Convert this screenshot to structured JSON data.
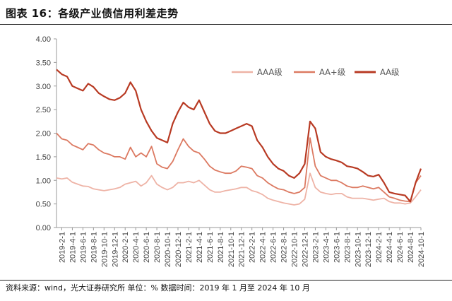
{
  "header": {
    "title": "图表 16：各级产业债信用利差走势"
  },
  "footer": {
    "source": "资料来源：wind，光大证券研究所   单位：%   数据时间：2019 年 1 月至 2024 年 10 月"
  },
  "colors": {
    "aaa": "#eeb3a6",
    "aa_plus": "#dc7a62",
    "aa": "#b83a23",
    "axis": "#999999",
    "title_rule": "#222222"
  },
  "chart_data": {
    "type": "line",
    "title": "图表 16：各级产业债信用利差走势",
    "xlabel": "",
    "ylabel": "",
    "ylim": [
      0,
      4
    ],
    "y_ticks": [
      "0.00",
      "0.50",
      "1.00",
      "1.50",
      "2.00",
      "2.50",
      "3.00",
      "3.50",
      "4.00"
    ],
    "x_tick_labels": [
      "2019-2-1",
      "2019-4-1",
      "2019-6-1",
      "2019-8-1",
      "2019-10-1",
      "2019-12-1",
      "2020-2-1",
      "2020-4-1",
      "2020-6-1",
      "2020-8-1",
      "2020-10-1",
      "2020-12-1",
      "2021-2-1",
      "2021-4-1",
      "2021-6-1",
      "2021-8-1",
      "2021-10-1",
      "2021-12-1",
      "2022-2-1",
      "2022-4-1",
      "2022-6-1",
      "2022-8-1",
      "2022-10-1",
      "2022-12-1",
      "2023-2-1",
      "2023-4-1",
      "2023-6-1",
      "2023-8-1",
      "2023-10-1",
      "2023-12-1",
      "2024-2-1",
      "2024-4-1",
      "2024-6-1",
      "2024-8-1",
      "2024-10-1"
    ],
    "x": [
      "2019-1",
      "2019-2",
      "2019-3",
      "2019-4",
      "2019-5",
      "2019-6",
      "2019-7",
      "2019-8",
      "2019-9",
      "2019-10",
      "2019-11",
      "2019-12",
      "2020-1",
      "2020-2",
      "2020-3",
      "2020-4",
      "2020-5",
      "2020-6",
      "2020-7",
      "2020-8",
      "2020-9",
      "2020-10",
      "2020-11",
      "2020-12",
      "2021-1",
      "2021-2",
      "2021-3",
      "2021-4",
      "2021-5",
      "2021-6",
      "2021-7",
      "2021-8",
      "2021-9",
      "2021-10",
      "2021-11",
      "2021-12",
      "2022-1",
      "2022-2",
      "2022-3",
      "2022-4",
      "2022-5",
      "2022-6",
      "2022-7",
      "2022-8",
      "2022-9",
      "2022-10",
      "2022-11",
      "2022-12",
      "2023-1",
      "2023-2",
      "2023-3",
      "2023-4",
      "2023-5",
      "2023-6",
      "2023-7",
      "2023-8",
      "2023-9",
      "2023-10",
      "2023-11",
      "2023-12",
      "2024-1",
      "2024-2",
      "2024-3",
      "2024-4",
      "2024-5",
      "2024-6",
      "2024-7",
      "2024-8",
      "2024-9",
      "2024-10"
    ],
    "series": [
      {
        "name": "AAA级",
        "values": [
          1.05,
          1.03,
          1.05,
          0.96,
          0.92,
          0.88,
          0.87,
          0.82,
          0.8,
          0.78,
          0.8,
          0.82,
          0.85,
          0.92,
          0.95,
          0.98,
          0.88,
          0.95,
          1.1,
          0.92,
          0.85,
          0.8,
          0.85,
          0.95,
          0.95,
          0.98,
          0.95,
          1.0,
          0.9,
          0.8,
          0.75,
          0.75,
          0.78,
          0.8,
          0.82,
          0.85,
          0.85,
          0.78,
          0.75,
          0.7,
          0.62,
          0.58,
          0.55,
          0.52,
          0.5,
          0.48,
          0.5,
          0.6,
          1.15,
          0.85,
          0.75,
          0.72,
          0.7,
          0.72,
          0.72,
          0.65,
          0.62,
          0.62,
          0.62,
          0.6,
          0.58,
          0.6,
          0.62,
          0.55,
          0.52,
          0.52,
          0.5,
          0.52,
          0.65,
          0.8
        ]
      },
      {
        "name": "AA+级",
        "values": [
          2.0,
          1.88,
          1.85,
          1.75,
          1.7,
          1.65,
          1.78,
          1.75,
          1.65,
          1.58,
          1.55,
          1.5,
          1.5,
          1.45,
          1.7,
          1.5,
          1.58,
          1.5,
          1.72,
          1.35,
          1.28,
          1.25,
          1.4,
          1.65,
          1.88,
          1.72,
          1.62,
          1.58,
          1.45,
          1.3,
          1.22,
          1.18,
          1.15,
          1.15,
          1.2,
          1.3,
          1.28,
          1.25,
          1.1,
          1.05,
          0.95,
          0.88,
          0.82,
          0.8,
          0.75,
          0.72,
          0.75,
          0.85,
          1.9,
          1.3,
          1.1,
          1.05,
          1.0,
          1.0,
          0.95,
          0.88,
          0.85,
          0.85,
          0.88,
          0.85,
          0.82,
          0.85,
          0.75,
          0.65,
          0.62,
          0.58,
          0.56,
          0.55,
          0.95,
          1.1
        ]
      },
      {
        "name": "AA级",
        "values": [
          3.35,
          3.25,
          3.2,
          3.0,
          2.95,
          2.9,
          3.05,
          2.98,
          2.85,
          2.78,
          2.72,
          2.7,
          2.75,
          2.85,
          3.08,
          2.9,
          2.5,
          2.25,
          2.05,
          1.9,
          1.85,
          1.8,
          2.2,
          2.45,
          2.65,
          2.55,
          2.5,
          2.7,
          2.45,
          2.2,
          2.05,
          2.0,
          2.0,
          2.05,
          2.1,
          2.15,
          2.2,
          2.15,
          1.85,
          1.7,
          1.5,
          1.35,
          1.25,
          1.2,
          1.1,
          1.05,
          1.15,
          1.35,
          2.25,
          2.1,
          1.6,
          1.5,
          1.45,
          1.42,
          1.38,
          1.3,
          1.28,
          1.25,
          1.18,
          1.1,
          1.08,
          1.12,
          0.95,
          0.75,
          0.72,
          0.7,
          0.68,
          0.55,
          0.95,
          1.25
        ]
      }
    ],
    "legend": {
      "position": "top-right"
    },
    "grid": false
  }
}
